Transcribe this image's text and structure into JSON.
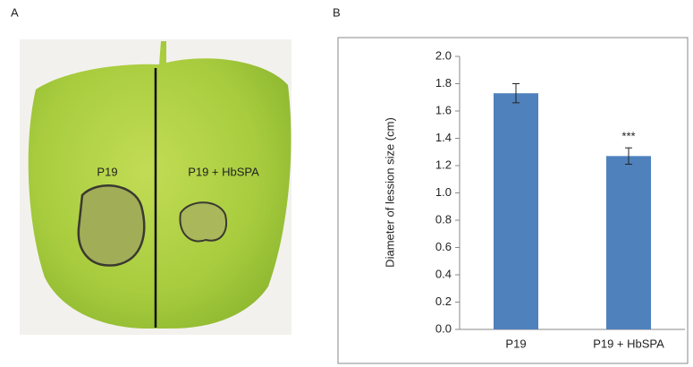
{
  "panels": {
    "a_label": "A",
    "b_label": "B",
    "leaf_left_label": "P19",
    "leaf_right_label": "P19 + HbSPA"
  },
  "chart_data": {
    "type": "bar",
    "y_label": "Diameter of lession size (cm)",
    "categories": [
      "P19",
      "P19 + HbSPA"
    ],
    "values": [
      1.73,
      1.27
    ],
    "errors": [
      0.07,
      0.06
    ],
    "color": "#4f81bd",
    "annotations": [
      null,
      "***"
    ],
    "ylim": [
      0,
      2.0
    ],
    "yticks": [
      {
        "value": 0,
        "label": "0.0"
      },
      {
        "value": 0.2,
        "label": "0.2"
      },
      {
        "value": 0.4,
        "label": "0.4"
      },
      {
        "value": 0.6,
        "label": "0.6"
      },
      {
        "value": 0.8,
        "label": "0.8"
      },
      {
        "value": 1.0,
        "label": "1.0"
      },
      {
        "value": 1.2,
        "label": "1.2"
      },
      {
        "value": 1.4,
        "label": "1.4"
      },
      {
        "value": 1.6,
        "label": "1.6"
      },
      {
        "value": 1.8,
        "label": "1.8"
      },
      {
        "value": 2.0,
        "label": "2.0"
      }
    ],
    "grid": false
  }
}
